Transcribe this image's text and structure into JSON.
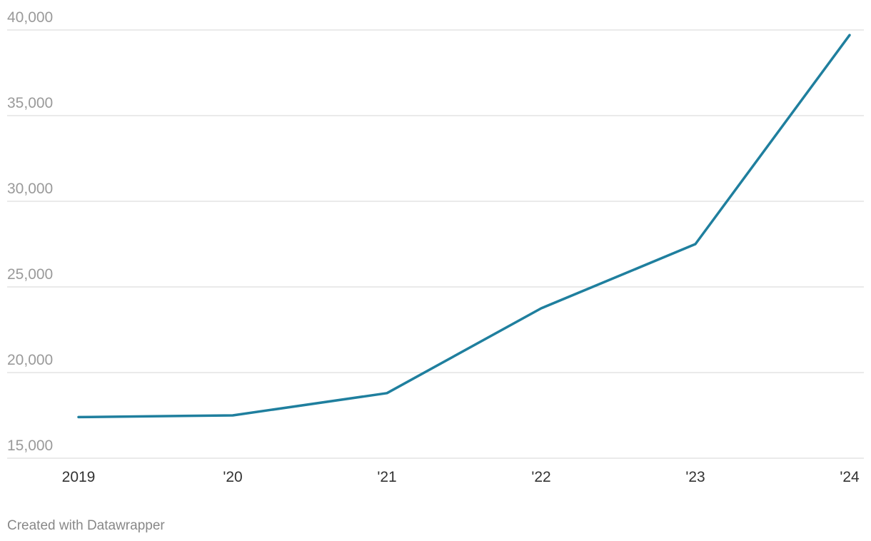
{
  "chart_data": {
    "type": "line",
    "categories": [
      "2019",
      "'20",
      "'21",
      "'22",
      "'23",
      "'24"
    ],
    "values": [
      17400,
      17500,
      18800,
      23750,
      27500,
      39700
    ],
    "color": "#1f7f9e",
    "ylim": [
      15000,
      40000
    ],
    "yticks": [
      {
        "value": 15000,
        "label": "15,000"
      },
      {
        "value": 20000,
        "label": "20,000"
      },
      {
        "value": 25000,
        "label": "25,000"
      },
      {
        "value": 30000,
        "label": "30,000"
      },
      {
        "value": 35000,
        "label": "35,000"
      },
      {
        "value": 40000,
        "label": "40,000"
      }
    ],
    "grid": true
  },
  "footer": "Created with Datawrapper"
}
